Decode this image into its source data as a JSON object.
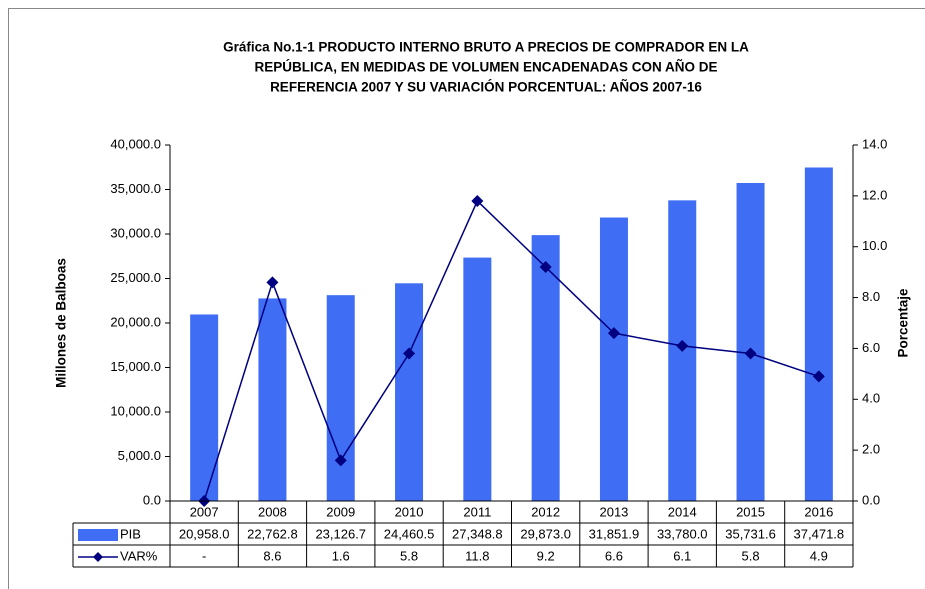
{
  "chart_data": {
    "type": "bar",
    "title": [
      "Gráfica No.1-1 PRODUCTO INTERNO BRUTO A PRECIOS DE COMPRADOR EN LA",
      "REPÚBLICA, EN MEDIDAS  DE VOLUMEN ENCADENADAS CON AÑO DE",
      "REFERENCIA 2007 Y SU VARIACIÓN PORCENTUAL: AÑOS 2007-16"
    ],
    "y_label": "Millones de Balboas",
    "y2_label": "Porcentaje",
    "categories": [
      "2007",
      "2008",
      "2009",
      "2010",
      "2011",
      "2012",
      "2013",
      "2014",
      "2015",
      "2016"
    ],
    "series": [
      {
        "name": "PIB",
        "color": "#3f6df3",
        "values": [
          20958.0,
          22762.8,
          23126.7,
          24460.5,
          27348.8,
          29873.0,
          31851.9,
          33780.0,
          35731.6,
          37471.8
        ],
        "value_labels": [
          "20,958.0",
          "22,762.8",
          "23,126.7",
          "24,460.5",
          "27,348.8",
          "29,873.0",
          "31,851.9",
          "33,780.0",
          "35,731.6",
          "37,471.8"
        ]
      },
      {
        "name": "VAR%",
        "type": "line",
        "axis": "y2",
        "color": "#000080",
        "values": [
          0,
          8.6,
          1.6,
          5.8,
          11.8,
          9.2,
          6.6,
          6.1,
          5.8,
          4.9
        ],
        "value_labels": [
          "-",
          "8.6",
          "1.6",
          "5.8",
          "11.8",
          "9.2",
          "6.6",
          "6.1",
          "5.8",
          "4.9"
        ]
      }
    ],
    "ylim": [
      0,
      40000
    ],
    "yticks": [
      {
        "value": 0,
        "label": "0.0"
      },
      {
        "value": 5000,
        "label": "5,000.0"
      },
      {
        "value": 10000,
        "label": "10,000.0"
      },
      {
        "value": 15000,
        "label": "15,000.0"
      },
      {
        "value": 20000,
        "label": "20,000.0"
      },
      {
        "value": 25000,
        "label": "25,000.0"
      },
      {
        "value": 30000,
        "label": "30,000.0"
      },
      {
        "value": 35000,
        "label": "35,000.0"
      },
      {
        "value": 40000,
        "label": "40,000.0"
      }
    ],
    "y2lim": [
      0,
      14
    ],
    "y2ticks": [
      {
        "value": 0,
        "label": "0.0"
      },
      {
        "value": 2,
        "label": "2.0"
      },
      {
        "value": 4,
        "label": "4.0"
      },
      {
        "value": 6,
        "label": "6.0"
      },
      {
        "value": 8,
        "label": "8.0"
      },
      {
        "value": 10,
        "label": "10.0"
      },
      {
        "value": 12,
        "label": "12.0"
      },
      {
        "value": 14,
        "label": "14.0"
      }
    ],
    "grid": false
  }
}
